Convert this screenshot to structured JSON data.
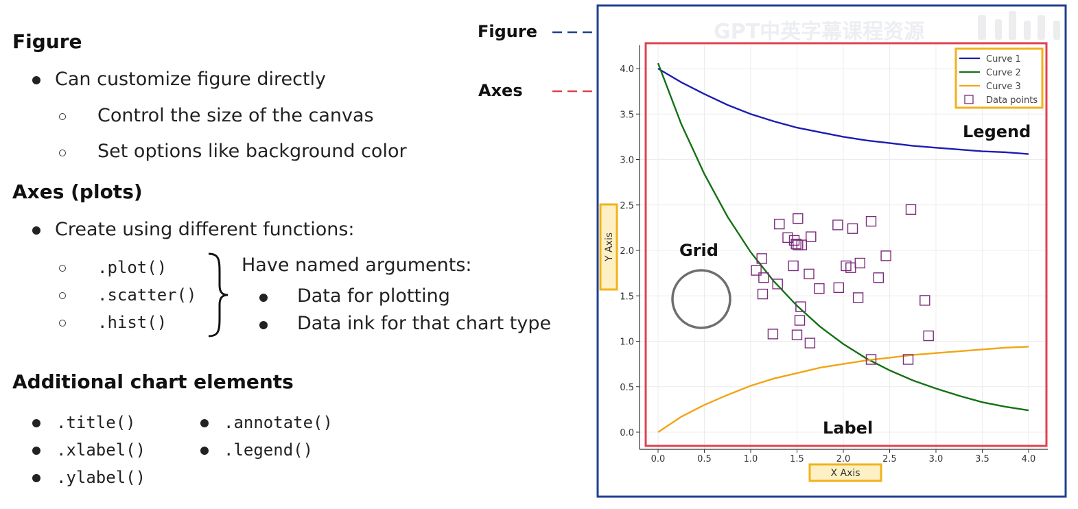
{
  "left": {
    "figure": {
      "heading": "Figure",
      "bullet": "Can customize figure directly",
      "sub": [
        "Control the size of the canvas",
        "Set options like background color"
      ]
    },
    "axes": {
      "heading": "Axes (plots)",
      "bullet": "Create using different functions:",
      "funcs": [
        ".plot()",
        ".scatter()",
        ".hist()"
      ],
      "named_heading": "Have named arguments:",
      "named_items": [
        "Data for plotting",
        "Data ink for that chart type"
      ]
    },
    "additional": {
      "heading": "Additional chart elements",
      "col1": [
        ".title()",
        ".xlabel()",
        ".ylabel()"
      ],
      "col2": [
        ".annotate()",
        ".legend()"
      ]
    }
  },
  "callouts": {
    "figure": "Figure",
    "axes": "Axes",
    "legend": "Legend",
    "grid": "Grid",
    "label": "Label"
  },
  "watermark": "GPT中英字幕课程资源",
  "colors": {
    "figure_border": "#1f3f8f",
    "axes_border": "#e0404f",
    "highlight": "#f2b21a",
    "highlight_fill": "#fdf0c4",
    "curve1": "#1c1cb4",
    "curve2": "#137113",
    "curve3": "#f2a413",
    "points": "#7a2a7a"
  },
  "chart_data": {
    "type": "line",
    "xlabel": "X Axis",
    "ylabel": "Y Axis",
    "xlim": [
      -0.1,
      4.2
    ],
    "ylim": [
      -0.2,
      4.25
    ],
    "x_ticks": [
      "0.0",
      "0.5",
      "1.0",
      "1.5",
      "2.0",
      "2.5",
      "3.0",
      "3.5",
      "4.0"
    ],
    "y_ticks": [
      "0.0",
      "0.5",
      "1.0",
      "1.5",
      "2.0",
      "2.5",
      "3.0",
      "3.5",
      "4.0"
    ],
    "grid": true,
    "legend_position": "top-right",
    "series": [
      {
        "name": "Curve 1",
        "type": "line",
        "x": [
          0.0,
          0.25,
          0.5,
          0.75,
          1.0,
          1.25,
          1.5,
          1.75,
          2.0,
          2.25,
          2.5,
          2.75,
          3.0,
          3.25,
          3.5,
          3.75,
          4.0
        ],
        "y": [
          4.0,
          3.85,
          3.72,
          3.6,
          3.5,
          3.42,
          3.35,
          3.3,
          3.25,
          3.21,
          3.18,
          3.15,
          3.13,
          3.11,
          3.09,
          3.08,
          3.06
        ]
      },
      {
        "name": "Curve 2",
        "type": "line",
        "x": [
          0.0,
          0.25,
          0.5,
          0.75,
          1.0,
          1.25,
          1.5,
          1.75,
          2.0,
          2.25,
          2.5,
          2.75,
          3.0,
          3.25,
          3.5,
          3.75,
          4.0
        ],
        "y": [
          4.06,
          3.39,
          2.84,
          2.37,
          1.98,
          1.66,
          1.39,
          1.16,
          0.97,
          0.81,
          0.68,
          0.57,
          0.48,
          0.4,
          0.33,
          0.28,
          0.24
        ]
      },
      {
        "name": "Curve 3",
        "type": "line",
        "x": [
          0.0,
          0.25,
          0.5,
          0.75,
          1.0,
          1.25,
          1.5,
          1.75,
          2.0,
          2.25,
          2.5,
          2.75,
          3.0,
          3.25,
          3.5,
          3.75,
          4.0
        ],
        "y": [
          0.0,
          0.17,
          0.3,
          0.41,
          0.51,
          0.59,
          0.65,
          0.71,
          0.75,
          0.79,
          0.82,
          0.85,
          0.87,
          0.89,
          0.91,
          0.93,
          0.94
        ]
      },
      {
        "name": "Data points",
        "type": "scatter",
        "x": [
          1.06,
          1.12,
          1.14,
          1.13,
          1.24,
          1.29,
          1.31,
          1.4,
          1.46,
          1.47,
          1.49,
          1.5,
          1.51,
          1.51,
          1.53,
          1.54,
          1.55,
          1.63,
          1.64,
          1.65,
          1.74,
          1.94,
          1.95,
          2.03,
          2.08,
          2.1,
          2.16,
          2.18,
          2.3,
          2.3,
          2.38,
          2.46,
          2.7,
          2.73,
          2.88,
          2.92
        ],
        "y": [
          1.78,
          1.91,
          1.7,
          1.52,
          1.08,
          1.63,
          2.29,
          2.14,
          1.83,
          2.11,
          2.07,
          1.07,
          2.06,
          2.35,
          1.23,
          1.38,
          2.06,
          1.74,
          0.98,
          2.15,
          1.58,
          2.28,
          1.59,
          1.83,
          1.81,
          2.24,
          1.48,
          1.86,
          2.32,
          0.8,
          1.7,
          1.94,
          0.8,
          2.45,
          1.45,
          1.06
        ]
      }
    ]
  }
}
